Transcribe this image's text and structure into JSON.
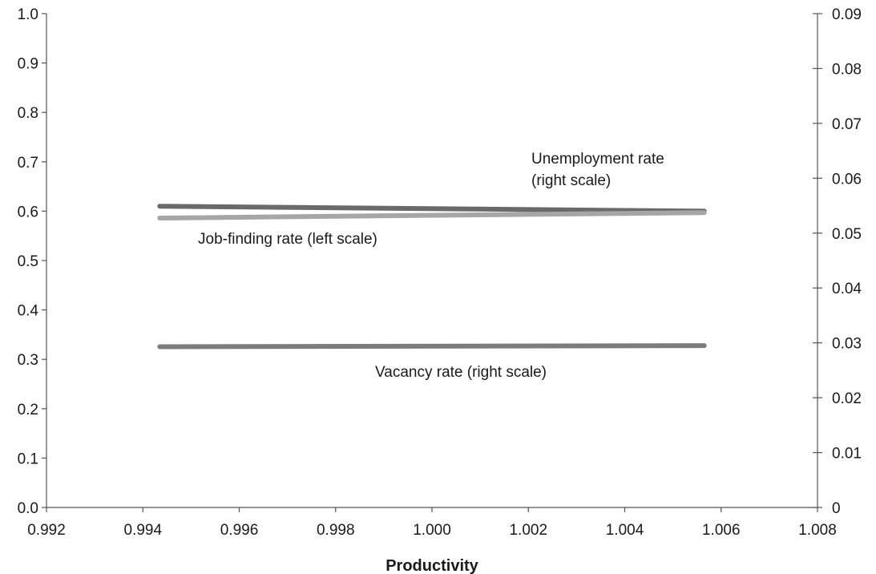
{
  "chart_data": {
    "type": "line",
    "xlabel": "Productivity",
    "xlim": [
      0.992,
      1.008
    ],
    "x_ticks": [
      "0.992",
      "0.994",
      "0.996",
      "0.998",
      "1.000",
      "1.002",
      "1.004",
      "1.006",
      "1.008"
    ],
    "y_left": {
      "ylim": [
        0,
        1.0
      ],
      "ticks": [
        "0.0",
        "0.1",
        "0.2",
        "0.3",
        "0.4",
        "0.5",
        "0.6",
        "0.7",
        "0.8",
        "0.9",
        "1.0"
      ]
    },
    "y_right": {
      "ylim": [
        0,
        0.09
      ],
      "ticks": [
        "0",
        "0.01",
        "0.02",
        "0.03",
        "0.04",
        "0.05",
        "0.06",
        "0.07",
        "0.08",
        "0.09"
      ]
    },
    "grid": false,
    "series": [
      {
        "name": "Unemployment rate\n(right scale)",
        "axis": "right",
        "color": "#6a6a6a",
        "points": [
          [
            0.99435,
            0.0549
          ],
          [
            1.00565,
            0.054
          ]
        ]
      },
      {
        "name": "Job-finding rate (left scale)",
        "axis": "left",
        "color": "#a6a6a6",
        "points": [
          [
            0.99435,
            0.586
          ],
          [
            1.00565,
            0.597
          ]
        ]
      },
      {
        "name": "Vacancy rate (right scale)",
        "axis": "right",
        "color": "#7c7c7c",
        "points": [
          [
            0.99435,
            0.0293
          ],
          [
            1.00565,
            0.0295
          ]
        ]
      }
    ]
  }
}
